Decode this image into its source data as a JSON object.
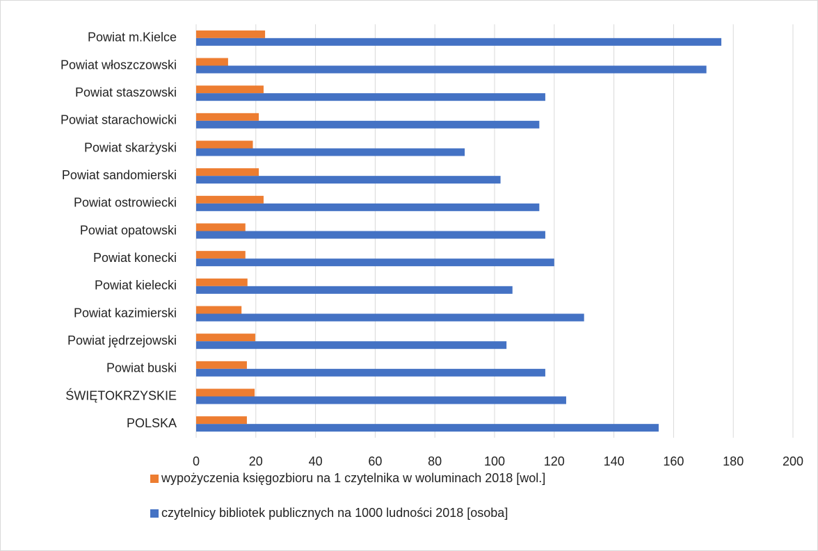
{
  "chart_data": {
    "type": "hbar",
    "categories": [
      "Powiat m.Kielce",
      "Powiat włoszczowski",
      "Powiat staszowski",
      "Powiat starachowicki",
      "Powiat skarżyski",
      "Powiat sandomierski",
      "Powiat ostrowiecki",
      "Powiat opatowski",
      "Powiat konecki",
      "Powiat kielecki",
      "Powiat kazimierski",
      "Powiat jędrzejowski",
      "Powiat buski",
      "ŚWIĘTOKRZYSKIE",
      "POLSKA"
    ],
    "series": [
      {
        "name": "wypożyczenia księgozbioru na 1 czytelnika w woluminach 2018 [wol.]",
        "color": "#ed7d31",
        "values": [
          23.1,
          10.7,
          22.6,
          21,
          19,
          21,
          22.6,
          16.5,
          16.5,
          17.2,
          15.2,
          19.8,
          17,
          19.6,
          17
        ]
      },
      {
        "name": "czytelnicy bibliotek publicznych na 1000 ludności 2018 [osoba]",
        "color": "#4472c4",
        "values": [
          176,
          171,
          117,
          115,
          90,
          102,
          115,
          117,
          120,
          106,
          130,
          104,
          117,
          124,
          155
        ]
      }
    ],
    "xlim": [
      0,
      200
    ],
    "xticks": [
      0,
      20,
      40,
      60,
      80,
      100,
      120,
      140,
      160,
      180,
      200
    ],
    "grid": true
  }
}
